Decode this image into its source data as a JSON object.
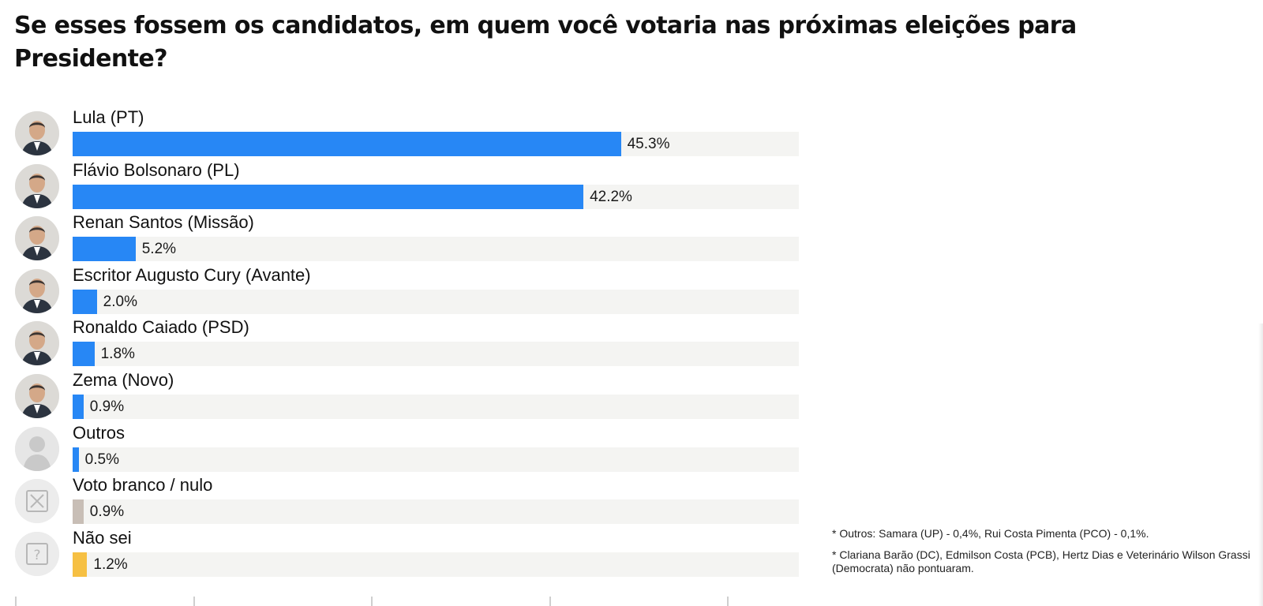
{
  "chart_data": {
    "type": "bar",
    "orientation": "horizontal",
    "title": "Se esses fossem os candidatos, em quem você votaria nas próximas eleições para Presidente?",
    "categories": [
      "Lula (PT)",
      "Flávio Bolsonaro (PL)",
      "Renan Santos (Missão)",
      "Escritor Augusto Cury (Avante)",
      "Ronaldo Caiado (PSD)",
      "Zema (Novo)",
      "Outros",
      "Voto branco / nulo",
      "Não sei"
    ],
    "values": [
      45.3,
      42.2,
      5.2,
      2.0,
      1.8,
      0.9,
      0.5,
      0.9,
      1.2
    ],
    "value_labels": [
      "45.3%",
      "42.2%",
      "5.2%",
      "2.0%",
      "1.8%",
      "0.9%",
      "0.5%",
      "0.9%",
      "1.2%"
    ],
    "bar_colors": [
      "#2787f5",
      "#2787f5",
      "#2787f5",
      "#2787f5",
      "#2787f5",
      "#2787f5",
      "#2787f5",
      "#c8beb6",
      "#f6c043"
    ],
    "avatar_icons": [
      "photo-icon",
      "photo-icon",
      "photo-icon",
      "photo-icon",
      "photo-icon",
      "photo-icon",
      "person-silhouette-icon",
      "x-box-icon",
      "question-box-icon"
    ],
    "xlim": [
      0,
      60
    ],
    "grid": false,
    "legend": "none",
    "xlabel": "",
    "ylabel": ""
  },
  "notes": [
    "* Outros: Samara (UP) - 0,4%, Rui Costa Pimenta (PCO) - 0,1%.",
    "* Clariana Barão (DC), Edmilson Costa (PCB), Hertz Dias e Veterinário Wilson Grassi (Democrata) não pontuaram."
  ],
  "colors": {
    "accent": "#2787f5",
    "blank_null": "#c8beb6",
    "dont_know": "#f6c043",
    "track": "#f4f4f2"
  }
}
